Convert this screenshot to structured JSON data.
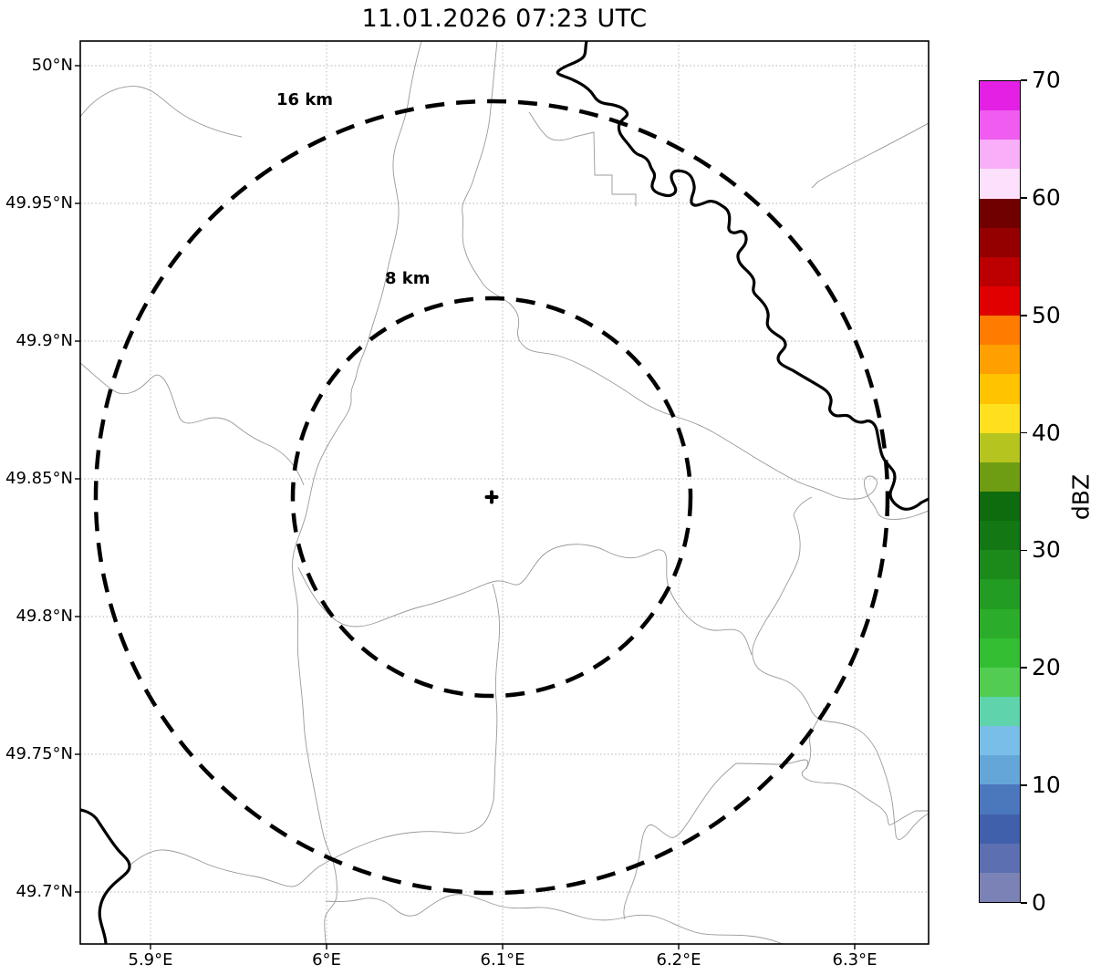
{
  "title": "11.01.2026 07:23 UTC",
  "map": {
    "outer_ring_label": "16 km",
    "inner_ring_label": "8 km",
    "center_marker": "+"
  },
  "axes": {
    "x_ticks": [
      "5.9°E",
      "6°E",
      "6.1°E",
      "6.2°E",
      "6.3°E"
    ],
    "y_ticks": [
      "50°N",
      "49.95°N",
      "49.9°N",
      "49.85°N",
      "49.8°N",
      "49.75°N",
      "49.7°N"
    ]
  },
  "colorbar": {
    "label": "dBZ",
    "ticks": [
      "0",
      "10",
      "20",
      "30",
      "40",
      "50",
      "60",
      "70"
    ],
    "value_min": 0,
    "value_max": 70,
    "segment_step_dbz": 2.5,
    "colors_bottom_to_top": [
      "#7B83B6",
      "#5B6FB1",
      "#4160AC",
      "#4B77BD",
      "#64A6D8",
      "#79BEE8",
      "#5FD3AC",
      "#52CD52",
      "#33BE33",
      "#2BAD2B",
      "#239C23",
      "#1B8A1B",
      "#137813",
      "#0E6B0E",
      "#6E9C12",
      "#B5C41E",
      "#FFE01E",
      "#FFC300",
      "#FFA000",
      "#FF7C00",
      "#E00000",
      "#BC0000",
      "#940000",
      "#700000",
      "#FCE0FC",
      "#F8AEF8",
      "#F05CF0",
      "#E320E3"
    ]
  },
  "chart_data": {
    "type": "map",
    "title": "11.01.2026 07:23 UTC",
    "x_axis": {
      "ticks": [
        "5.9°E",
        "6°E",
        "6.1°E",
        "6.2°E",
        "6.3°E"
      ],
      "range_deg_e": [
        5.86,
        6.34
      ],
      "grid": true
    },
    "y_axis": {
      "ticks": [
        "50°N",
        "49.95°N",
        "49.9°N",
        "49.85°N",
        "49.8°N",
        "49.75°N",
        "49.7°N"
      ],
      "range_deg_n": [
        49.68,
        50.01
      ],
      "grid": true
    },
    "colorbar": {
      "label": "dBZ",
      "range": [
        0,
        70
      ],
      "tick_step": 10,
      "segment_step": 2.5,
      "position": "right"
    },
    "range_rings_km": [
      8,
      16
    ],
    "radar_center": {
      "lon_deg_e": 6.09,
      "lat_deg_n": 49.84
    },
    "radar_echoes": "none visible (clear map, only borders/rivers and range rings)"
  }
}
